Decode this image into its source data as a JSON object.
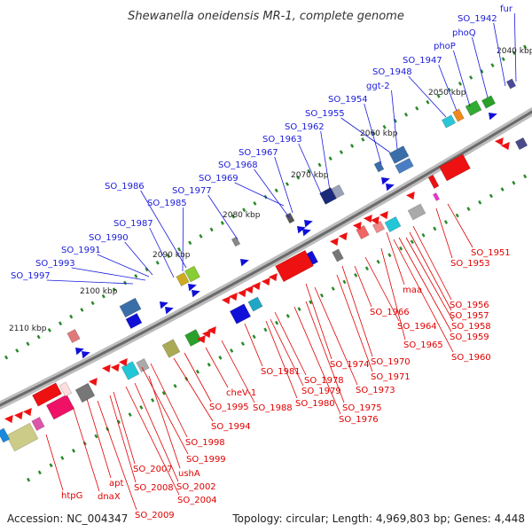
{
  "header": {
    "title": "Shewanella oneidensis MR-1, complete genome"
  },
  "footer": {
    "accession": "Accession: NC_004347",
    "topology": "Topology: circular; Length: 4,969,803 bp; Genes: 4,448"
  },
  "colors": {
    "forward_label": "#1a1adb",
    "reverse_label": "#e00000",
    "backbone": "#8a8a8a",
    "ruler_dots": "#2a8a2a"
  },
  "ticks": [
    "2040 kbp",
    "2050 kbp",
    "2060 kbp",
    "2070 kbp",
    "2080 kbp",
    "2090 kbp",
    "2100 kbp",
    "2110 kbp"
  ],
  "forward_genes": [
    "fur",
    "SO_1942",
    "phoQ",
    "phoP",
    "SO_1947",
    "SO_1948",
    "ggt-2",
    "SO_1954",
    "SO_1955",
    "SO_1962",
    "SO_1963",
    "SO_1967",
    "SO_1968",
    "SO_1969",
    "SO_1977",
    "SO_1986",
    "SO_1985",
    "SO_1987",
    "SO_1990",
    "SO_1991",
    "SO_1993",
    "SO_1997"
  ],
  "reverse_genes": [
    "SO_1951",
    "SO_1953",
    "maa",
    "SO_1956",
    "SO_1957",
    "SO_1958",
    "SO_1959",
    "SO_1960",
    "SO_1966",
    "SO_1964",
    "SO_1965",
    "SO_1970",
    "SO_1971",
    "SO_1974",
    "SO_1973",
    "SO_1981",
    "SO_1978",
    "SO_1979",
    "SO_1980",
    "SO_1975",
    "SO_1976",
    "cheV-1",
    "SO_1988",
    "SO_1995",
    "SO_1994",
    "SO_1998",
    "SO_1999",
    "SO_2007",
    "ushA",
    "SO_2002",
    "SO_2008",
    "SO_2004",
    "SO_2009",
    "apt",
    "dnaX",
    "htpG"
  ]
}
